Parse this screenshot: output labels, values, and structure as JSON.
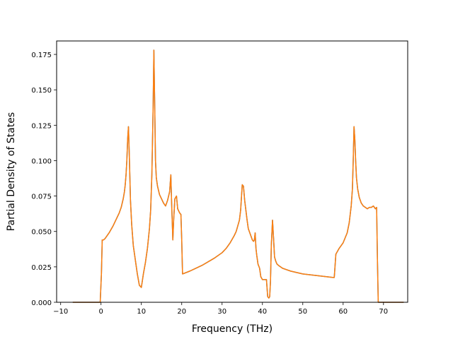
{
  "chart_data": {
    "type": "line",
    "title": "",
    "xlabel": "Frequency (THz)",
    "ylabel": "Partial Density of States",
    "xlim": [
      -11,
      76
    ],
    "ylim": [
      0,
      0.1845
    ],
    "xticks": [
      -10,
      0,
      10,
      20,
      30,
      40,
      50,
      60,
      70
    ],
    "xtick_labels": [
      "−10",
      "0",
      "10",
      "20",
      "30",
      "40",
      "50",
      "60",
      "70"
    ],
    "yticks": [
      0,
      0.025,
      0.05,
      0.075,
      0.1,
      0.125,
      0.15,
      0.175
    ],
    "ytick_labels": [
      "0.000",
      "0.025",
      "0.050",
      "0.075",
      "0.100",
      "0.125",
      "0.150",
      "0.175"
    ],
    "grid": false,
    "legend": "none",
    "series": [
      {
        "color": "#1f77b4",
        "x": [
          -7,
          -0.5,
          -0.2,
          0.1,
          0.3,
          0.6,
          1,
          2,
          3,
          4,
          4.5,
          5,
          5.5,
          5.8,
          6,
          6.2,
          6.4,
          6.6,
          6.8,
          7,
          7.3,
          7.6,
          8,
          8.5,
          9,
          9.5,
          10,
          10.5,
          11,
          11.5,
          12,
          12.3,
          12.6,
          12.9,
          13.1,
          13.3,
          13.5,
          13.7,
          14,
          14.5,
          15,
          15.5,
          16,
          16.5,
          17,
          17.3,
          17.5,
          17.8,
          18,
          18.3,
          18.7,
          19,
          19.5,
          19.8,
          20,
          20.2,
          22,
          25,
          28,
          30,
          31,
          32,
          33,
          33.5,
          34,
          34.3,
          34.6,
          35,
          35.3,
          35.6,
          35.9,
          36.2,
          36.5,
          37,
          37.5,
          37.8,
          38,
          38.2,
          38.4,
          38.6,
          38.9,
          39.3,
          39.6,
          40,
          40.5,
          41,
          41.3,
          41.6,
          41.8,
          42,
          42.2,
          42.5,
          42.8,
          43,
          43.3,
          43.6,
          44,
          45,
          47,
          50,
          53,
          56,
          57.5,
          57.8,
          58.2,
          59,
          60,
          61,
          61.5,
          62,
          62.3,
          62.5,
          62.7,
          62.9,
          63.1,
          63.3,
          63.6,
          64,
          64.5,
          65,
          65.5,
          66,
          66.5,
          67,
          67.5,
          68,
          68.3,
          68.5,
          68.7,
          69,
          75
        ],
        "y": [
          0,
          0,
          0,
          0.02,
          0.044,
          0.044,
          0.045,
          0.049,
          0.054,
          0.06,
          0.063,
          0.067,
          0.073,
          0.078,
          0.083,
          0.09,
          0.1,
          0.115,
          0.124,
          0.105,
          0.072,
          0.055,
          0.04,
          0.03,
          0.02,
          0.012,
          0.0105,
          0.02,
          0.028,
          0.038,
          0.052,
          0.065,
          0.09,
          0.135,
          0.178,
          0.14,
          0.1,
          0.088,
          0.082,
          0.076,
          0.073,
          0.07,
          0.068,
          0.072,
          0.078,
          0.09,
          0.07,
          0.044,
          0.058,
          0.073,
          0.075,
          0.066,
          0.063,
          0.062,
          0.044,
          0.02,
          0.022,
          0.026,
          0.031,
          0.035,
          0.038,
          0.042,
          0.047,
          0.05,
          0.055,
          0.058,
          0.065,
          0.083,
          0.082,
          0.072,
          0.065,
          0.058,
          0.052,
          0.048,
          0.044,
          0.043,
          0.044,
          0.049,
          0.038,
          0.033,
          0.027,
          0.024,
          0.018,
          0.016,
          0.016,
          0.016,
          0.004,
          0.003,
          0.004,
          0.015,
          0.04,
          0.058,
          0.043,
          0.032,
          0.029,
          0.027,
          0.026,
          0.024,
          0.022,
          0.02,
          0.019,
          0.018,
          0.0175,
          0.0175,
          0.034,
          0.038,
          0.042,
          0.049,
          0.056,
          0.068,
          0.08,
          0.1,
          0.124,
          0.115,
          0.1,
          0.088,
          0.08,
          0.074,
          0.07,
          0.068,
          0.067,
          0.066,
          0.067,
          0.067,
          0.068,
          0.066,
          0.067,
          0.03,
          0,
          0,
          0
        ]
      },
      {
        "color": "#ff7f0e",
        "x": [
          -7,
          -0.5,
          -0.2,
          0.1,
          0.3,
          0.6,
          1,
          2,
          3,
          4,
          4.5,
          5,
          5.5,
          5.8,
          6,
          6.2,
          6.4,
          6.6,
          6.8,
          7,
          7.3,
          7.6,
          8,
          8.5,
          9,
          9.5,
          10,
          10.5,
          11,
          11.5,
          12,
          12.3,
          12.6,
          12.9,
          13.1,
          13.3,
          13.5,
          13.7,
          14,
          14.5,
          15,
          15.5,
          16,
          16.5,
          17,
          17.3,
          17.5,
          17.8,
          18,
          18.3,
          18.7,
          19,
          19.5,
          19.8,
          20,
          20.2,
          22,
          25,
          28,
          30,
          31,
          32,
          33,
          33.5,
          34,
          34.3,
          34.6,
          35,
          35.3,
          35.6,
          35.9,
          36.2,
          36.5,
          37,
          37.5,
          37.8,
          38,
          38.2,
          38.4,
          38.6,
          38.9,
          39.3,
          39.6,
          40,
          40.5,
          41,
          41.3,
          41.6,
          41.8,
          42,
          42.2,
          42.5,
          42.8,
          43,
          43.3,
          43.6,
          44,
          45,
          47,
          50,
          53,
          56,
          57.5,
          57.8,
          58.2,
          59,
          60,
          61,
          61.5,
          62,
          62.3,
          62.5,
          62.7,
          62.9,
          63.1,
          63.3,
          63.6,
          64,
          64.5,
          65,
          65.5,
          66,
          66.5,
          67,
          67.5,
          68,
          68.3,
          68.5,
          68.7,
          69,
          75
        ],
        "y": [
          0,
          0,
          0,
          0.02,
          0.044,
          0.044,
          0.045,
          0.049,
          0.054,
          0.06,
          0.063,
          0.067,
          0.073,
          0.078,
          0.083,
          0.09,
          0.1,
          0.115,
          0.124,
          0.105,
          0.072,
          0.055,
          0.04,
          0.03,
          0.02,
          0.012,
          0.0105,
          0.02,
          0.028,
          0.038,
          0.052,
          0.065,
          0.09,
          0.135,
          0.178,
          0.14,
          0.1,
          0.088,
          0.082,
          0.076,
          0.073,
          0.07,
          0.068,
          0.072,
          0.078,
          0.09,
          0.07,
          0.044,
          0.058,
          0.073,
          0.075,
          0.066,
          0.063,
          0.062,
          0.044,
          0.02,
          0.022,
          0.026,
          0.031,
          0.035,
          0.038,
          0.042,
          0.047,
          0.05,
          0.055,
          0.058,
          0.065,
          0.083,
          0.082,
          0.072,
          0.065,
          0.058,
          0.052,
          0.048,
          0.044,
          0.043,
          0.044,
          0.049,
          0.038,
          0.033,
          0.027,
          0.024,
          0.018,
          0.016,
          0.016,
          0.016,
          0.004,
          0.003,
          0.004,
          0.015,
          0.04,
          0.058,
          0.043,
          0.032,
          0.029,
          0.027,
          0.026,
          0.024,
          0.022,
          0.02,
          0.019,
          0.018,
          0.0175,
          0.0175,
          0.034,
          0.038,
          0.042,
          0.049,
          0.056,
          0.068,
          0.08,
          0.1,
          0.124,
          0.115,
          0.1,
          0.088,
          0.08,
          0.074,
          0.07,
          0.068,
          0.067,
          0.066,
          0.067,
          0.067,
          0.068,
          0.066,
          0.067,
          0.03,
          0,
          0,
          0
        ]
      }
    ]
  }
}
